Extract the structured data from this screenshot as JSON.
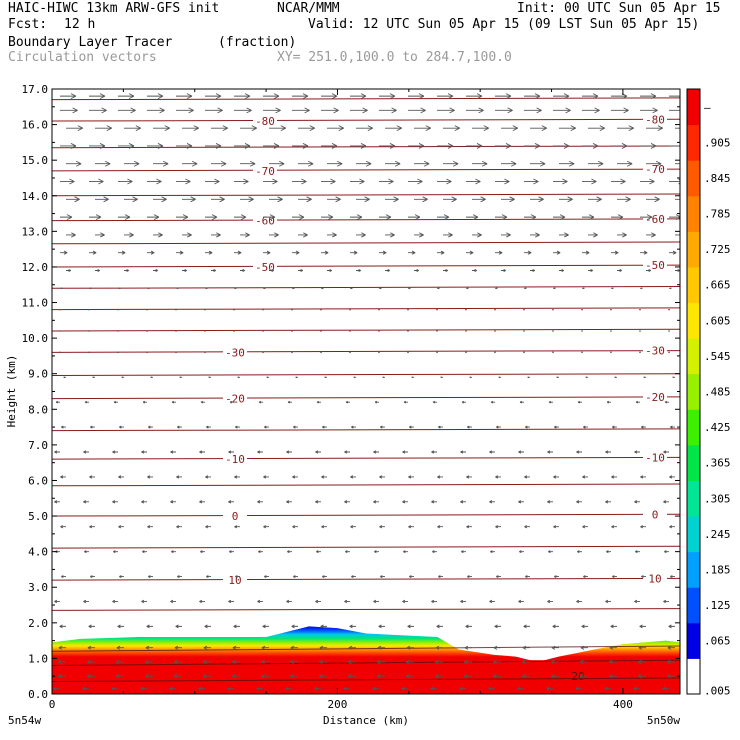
{
  "header": {
    "model": "HAIC-HIWC 13km ARW-GFS init",
    "org": "NCAR/MMM",
    "init": "Init: 00 UTC Sun 05 Apr 15",
    "fcst_label": "Fcst:",
    "fcst_value": "12 h",
    "valid": "Valid: 12 UTC Sun 05 Apr 15 (09 LST Sun 05 Apr 15)",
    "field": "Boundary Layer Tracer",
    "units": "(fraction)",
    "vectors": "Circulation vectors",
    "xy": "XY= 251.0,100.0 to 284.7,100.0"
  },
  "chart_data": {
    "type": "heatmap",
    "ylabel": "Height (km)",
    "xlabel": "Distance (km)",
    "xlim": [
      0,
      440
    ],
    "ylim": [
      0,
      17
    ],
    "x_ticks": [
      "0",
      "200",
      "400"
    ],
    "x_end_labels": [
      "5n54w",
      "5n50w"
    ],
    "y_ticks": [
      "0.0",
      "1.0",
      "2.0",
      "3.0",
      "4.0",
      "5.0",
      "6.0",
      "7.0",
      "8.0",
      "9.0",
      "10.0",
      "11.0",
      "12.0",
      "13.0",
      "14.0",
      "15.0",
      "16.0",
      "17.0"
    ],
    "colorbar": {
      "labels": [
        ".005",
        ".065",
        ".125",
        ".185",
        ".245",
        ".305",
        ".365",
        ".425",
        ".485",
        ".545",
        ".605",
        ".665",
        ".725",
        ".785",
        ".845",
        ".905",
        "–"
      ],
      "colors": [
        "#ffffff",
        "#0000e6",
        "#0050ff",
        "#00a0ff",
        "#00d2d2",
        "#00e696",
        "#00e646",
        "#3cf000",
        "#96f000",
        "#d2f000",
        "#ffe600",
        "#ffc800",
        "#ffaa00",
        "#ff8200",
        "#ff5a00",
        "#ff2800",
        "#f00000"
      ]
    },
    "contours": {
      "values": [
        10,
        0,
        -10,
        -20,
        -30,
        -50,
        -60,
        -70,
        -80
      ],
      "labels": [
        "10",
        "0",
        "-10",
        "-20",
        "-30",
        "-50",
        "-60",
        "-70",
        "-80"
      ],
      "heights_km": [
        3.2,
        5.0,
        6.6,
        8.3,
        9.6,
        12.0,
        13.3,
        14.7,
        16.1
      ],
      "bottom_label": "20",
      "bottom_height_km": 0.5,
      "color": "#8b1a1a"
    },
    "tracer_top_km": [
      [
        0,
        1.45
      ],
      [
        20,
        1.55
      ],
      [
        60,
        1.6
      ],
      [
        110,
        1.6
      ],
      [
        150,
        1.6
      ],
      [
        180,
        1.9
      ],
      [
        200,
        1.85
      ],
      [
        220,
        1.7
      ],
      [
        270,
        1.6
      ],
      [
        285,
        1.25
      ],
      [
        310,
        1.1
      ],
      [
        325,
        1.05
      ],
      [
        340,
        0.9
      ],
      [
        355,
        1.05
      ],
      [
        380,
        1.25
      ],
      [
        400,
        1.4
      ],
      [
        430,
        1.5
      ],
      [
        440,
        1.45
      ]
    ],
    "vector_color": "#555555",
    "vector_layers": [
      {
        "z": 16.8,
        "u": 1.0
      },
      {
        "z": 16.4,
        "u": 1.1
      },
      {
        "z": 15.9,
        "u": 1.05
      },
      {
        "z": 15.4,
        "u": 1.0
      },
      {
        "z": 14.9,
        "u": 0.95
      },
      {
        "z": 14.4,
        "u": 0.9
      },
      {
        "z": 13.9,
        "u": 0.85
      },
      {
        "z": 13.4,
        "u": 0.75
      },
      {
        "z": 12.9,
        "u": 0.6
      },
      {
        "z": 12.4,
        "u": 0.45
      },
      {
        "z": 11.9,
        "u": 0.3
      },
      {
        "z": 11.4,
        "u": 0.15
      },
      {
        "z": 10.8,
        "u": 0.05
      },
      {
        "z": 10.2,
        "u": 0.0
      },
      {
        "z": 9.6,
        "u": -0.05
      },
      {
        "z": 8.9,
        "u": -0.15
      },
      {
        "z": 8.2,
        "u": -0.25
      },
      {
        "z": 7.5,
        "u": -0.3
      },
      {
        "z": 6.8,
        "u": -0.35
      },
      {
        "z": 6.1,
        "u": -0.35
      },
      {
        "z": 5.4,
        "u": -0.35
      },
      {
        "z": 4.7,
        "u": -0.35
      },
      {
        "z": 4.0,
        "u": -0.3
      },
      {
        "z": 3.3,
        "u": -0.3
      },
      {
        "z": 2.6,
        "u": -0.35
      },
      {
        "z": 1.9,
        "u": -0.4
      },
      {
        "z": 1.3,
        "u": -0.45
      },
      {
        "z": 0.9,
        "u": -0.5
      },
      {
        "z": 0.5,
        "u": -0.5
      },
      {
        "z": 0.15,
        "u": -0.4
      }
    ]
  }
}
